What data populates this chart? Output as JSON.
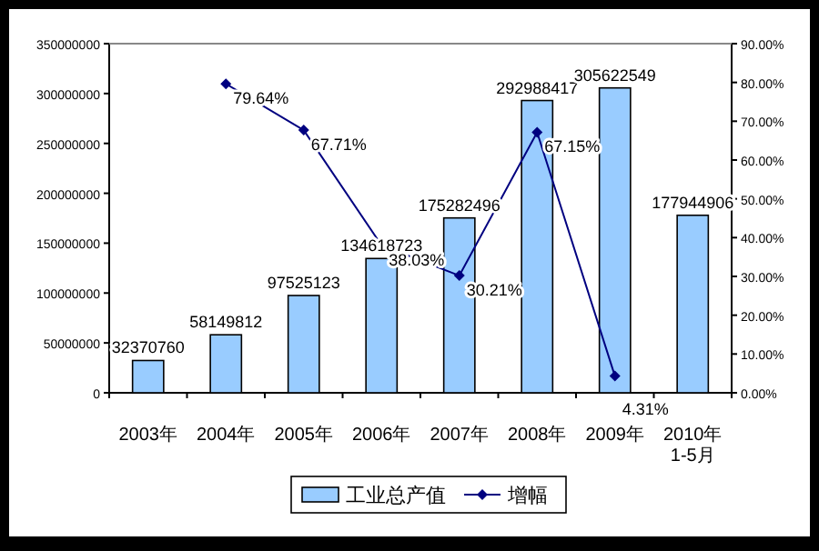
{
  "chart_data": {
    "type": "bar",
    "categories": [
      "2003年",
      "2004年",
      "2005年",
      "2006年",
      "2007年",
      "2008年",
      "2009年",
      "2010年\n1-5月"
    ],
    "series": [
      {
        "name": "工业总产值",
        "color": "#99ccff",
        "values": [
          32370760,
          58149812,
          97525123,
          134618723,
          175282496,
          292988417,
          305622549,
          177944906
        ],
        "value_labels": [
          "32370760",
          "58149812",
          "97525123",
          "134618723",
          "175282496",
          "292988417",
          "305622549",
          "177944906"
        ]
      },
      {
        "name": "增幅",
        "type": "line",
        "axis": "y2",
        "color": "#000080",
        "marker": "diamond",
        "values": [
          null,
          79.64,
          67.71,
          38.03,
          30.21,
          67.15,
          4.31,
          null
        ],
        "value_labels": [
          null,
          "79.64%",
          "67.71%",
          "38.03%",
          "30.21%",
          "67.15%",
          "4.31%",
          null
        ]
      }
    ],
    "ylim": [
      0,
      350000000
    ],
    "yticks": [
      0,
      50000000,
      100000000,
      150000000,
      200000000,
      250000000,
      300000000,
      350000000
    ],
    "y2lim": [
      0,
      90
    ],
    "y2ticks": [
      {
        "value": 0,
        "label": "0.00%"
      },
      {
        "value": 10,
        "label": "10.00%"
      },
      {
        "value": 20,
        "label": "20.00%"
      },
      {
        "value": 30,
        "label": "30.00%"
      },
      {
        "value": 40,
        "label": "40.00%"
      },
      {
        "value": 50,
        "label": "50.00%"
      },
      {
        "value": 60,
        "label": "60.00%"
      },
      {
        "value": 70,
        "label": "70.00%"
      },
      {
        "value": 80,
        "label": "80.00%"
      },
      {
        "value": 90,
        "label": "90.00%"
      }
    ],
    "legend": "bottom"
  }
}
